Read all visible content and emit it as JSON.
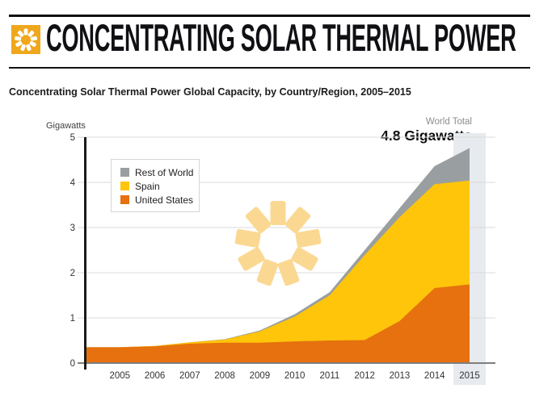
{
  "header": {
    "title": "CONCENTRATING SOLAR THERMAL POWER",
    "icon": "sun-burst-icon"
  },
  "subtitle": "Concentrating Solar Thermal Power Global Capacity, by Country/Region, 2005–2015",
  "chart_data": {
    "type": "area",
    "stacked": true,
    "title": "Concentrating Solar Thermal Power Global Capacity, by Country/Region, 2005–2015",
    "xlabel": "",
    "ylabel": "Gigawatts",
    "x": [
      2005,
      2006,
      2007,
      2008,
      2009,
      2010,
      2011,
      2012,
      2013,
      2014,
      2015
    ],
    "series": [
      {
        "name": "United States",
        "color": "#E6710E",
        "values": [
          0.35,
          0.37,
          0.43,
          0.45,
          0.45,
          0.48,
          0.5,
          0.51,
          0.93,
          1.66,
          1.74
        ]
      },
      {
        "name": "Spain",
        "color": "#FEC50A",
        "values": [
          0.0,
          0.01,
          0.03,
          0.07,
          0.25,
          0.55,
          1.0,
          1.88,
          2.3,
          2.3,
          2.3
        ]
      },
      {
        "name": "Rest of World",
        "color": "#999EA1",
        "values": [
          0.0,
          0.0,
          0.0,
          0.01,
          0.02,
          0.05,
          0.07,
          0.11,
          0.2,
          0.4,
          0.72
        ]
      }
    ],
    "y_ticks": [
      0,
      1,
      2,
      3,
      4,
      5
    ],
    "ylim": [
      0,
      5
    ],
    "grid": true,
    "legend_position": "top-left",
    "legend_order": [
      "Rest of World",
      "Spain",
      "United States"
    ],
    "annotation": {
      "label": "World Total",
      "value": "4.8 Gigawatts"
    },
    "highlight_year": 2015
  },
  "colors": {
    "icon_bg": "#EFA71C",
    "icon_sun": "#FFFFFF",
    "watermark_sun": "#FBD892",
    "highlight_band": "#E7EAEE",
    "gridline": "#DBDBDB",
    "x_axis": "#7F7F7F",
    "y_axis": "#1A1A1A",
    "tick_text": "#333333"
  }
}
